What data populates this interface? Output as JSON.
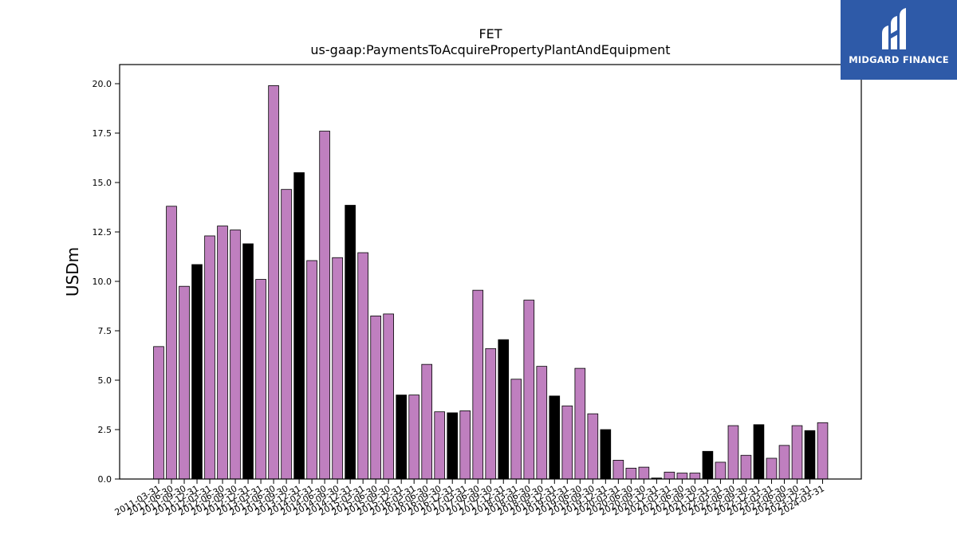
{
  "logo": {
    "text": "MIDGARD FINANCE",
    "color": "#2e5aa8"
  },
  "chart_data": {
    "type": "bar",
    "title": "FET",
    "subtitle": "us-gaap:PaymentsToAcquirePropertyPlantAndEquipment",
    "xlabel": "",
    "ylabel": "USDm",
    "ylim": [
      0,
      21
    ],
    "yticks": [
      "0.0",
      "2.5",
      "5.0",
      "7.5",
      "10.0",
      "12.5",
      "15.0",
      "17.5",
      "20.0"
    ],
    "grid": false,
    "colors": {
      "quarter": "#bf7fbf",
      "year_end": "#000000"
    },
    "categories": [
      "2011-03-31",
      "2011-06-30",
      "2011-09-30",
      "2011-12-31",
      "2012-03-31",
      "2012-06-30",
      "2012-09-30",
      "2012-12-31",
      "2013-03-31",
      "2013-06-30",
      "2013-09-30",
      "2013-12-31",
      "2014-03-31",
      "2014-06-30",
      "2014-09-30",
      "2014-12-31",
      "2015-03-31",
      "2015-06-30",
      "2015-09-30",
      "2015-12-31",
      "2016-03-31",
      "2016-06-30",
      "2016-09-30",
      "2016-12-31",
      "2017-03-31",
      "2017-06-30",
      "2017-09-30",
      "2017-12-31",
      "2018-03-31",
      "2018-06-30",
      "2018-09-30",
      "2018-12-31",
      "2019-03-31",
      "2019-06-30",
      "2019-09-30",
      "2019-12-31",
      "2020-03-31",
      "2020-06-30",
      "2020-09-30",
      "2020-12-31",
      "2021-03-31",
      "2021-06-30",
      "2021-09-30",
      "2021-12-31",
      "2022-03-31",
      "2022-06-30",
      "2022-09-30",
      "2022-12-31",
      "2023-03-31",
      "2023-06-30",
      "2023-09-30",
      "2023-12-31",
      "2024-03-31"
    ],
    "values": [
      6.7,
      13.8,
      9.75,
      10.85,
      12.3,
      12.8,
      12.6,
      11.9,
      10.1,
      19.9,
      14.65,
      15.5,
      11.05,
      17.6,
      11.2,
      13.85,
      11.45,
      8.25,
      8.35,
      4.25,
      4.25,
      5.8,
      3.4,
      3.35,
      3.45,
      9.55,
      6.6,
      7.05,
      5.05,
      9.05,
      5.7,
      4.2,
      3.7,
      5.6,
      3.3,
      2.5,
      0.95,
      0.55,
      0.6,
      0.05,
      0.35,
      0.3,
      0.3,
      1.4,
      0.85,
      2.7,
      1.2,
      2.75,
      1.05,
      1.7,
      2.7,
      2.45,
      2.85
    ],
    "year_end_index": [
      3,
      7,
      11,
      15,
      19,
      23,
      27,
      31,
      35,
      39,
      43,
      47,
      51
    ]
  }
}
